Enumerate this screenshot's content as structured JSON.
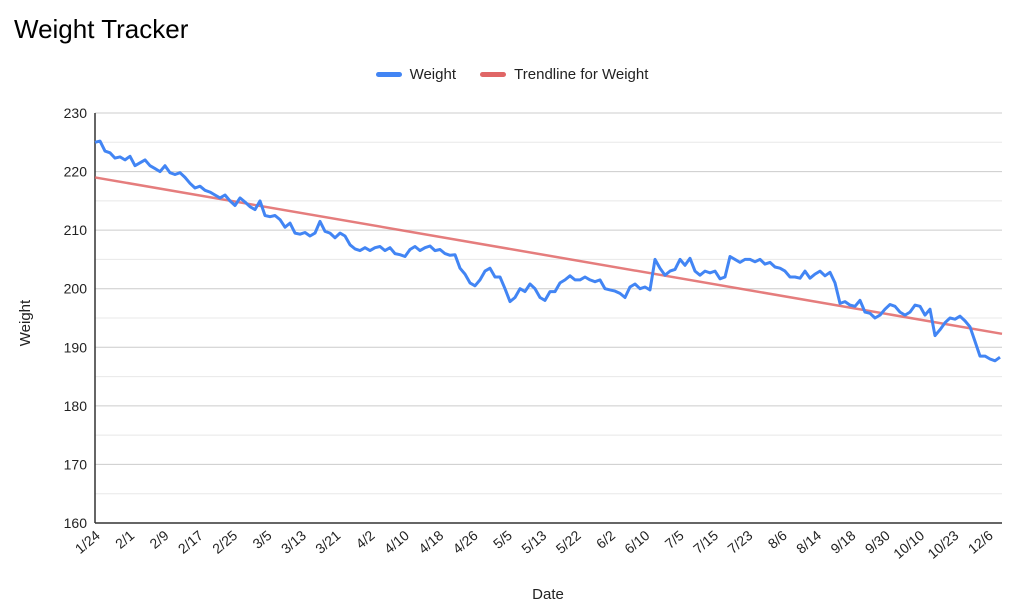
{
  "chart_data": {
    "type": "line",
    "title": "Weight Tracker",
    "xlabel": "Date",
    "ylabel": "Weight",
    "ylim": [
      160,
      230
    ],
    "yticks": [
      160,
      170,
      180,
      190,
      200,
      210,
      220,
      230
    ],
    "grid": true,
    "legend_position": "top",
    "x_tick_labels": [
      "1/24",
      "2/1",
      "2/9",
      "2/17",
      "2/25",
      "3/5",
      "3/13",
      "3/21",
      "4/2",
      "4/10",
      "4/18",
      "4/26",
      "5/5",
      "5/13",
      "5/22",
      "6/2",
      "6/10",
      "7/5",
      "7/15",
      "7/23",
      "8/6",
      "8/14",
      "9/18",
      "9/30",
      "10/10",
      "10/23",
      "12/6"
    ],
    "series": [
      {
        "name": "Weight",
        "color": "#4285f4",
        "values": [
          225,
          225.2,
          223.5,
          223.2,
          222.3,
          222.5,
          222,
          222.6,
          221,
          221.5,
          222,
          221,
          220.5,
          220,
          221,
          219.8,
          219.5,
          219.8,
          219,
          218,
          217.2,
          217.5,
          216.8,
          216.5,
          216,
          215.5,
          216,
          215,
          214.2,
          215.5,
          214.8,
          214,
          213.5,
          215,
          212.5,
          212.3,
          212.5,
          211.8,
          210.5,
          211.2,
          209.5,
          209.3,
          209.6,
          209,
          209.5,
          211.5,
          209.8,
          209.5,
          208.7,
          209.5,
          209,
          207.5,
          206.8,
          206.5,
          207,
          206.5,
          207,
          207.2,
          206.5,
          207,
          206,
          205.8,
          205.5,
          206.7,
          207.2,
          206.5,
          207,
          207.3,
          206.5,
          206.7,
          206,
          205.7,
          205.8,
          203.5,
          202.5,
          201,
          200.5,
          201.5,
          203,
          203.5,
          202,
          202,
          200,
          197.8,
          198.5,
          200,
          199.5,
          200.8,
          200,
          198.5,
          198,
          199.5,
          199.5,
          201,
          201.5,
          202.2,
          201.5,
          201.5,
          202,
          201.5,
          201.2,
          201.5,
          200,
          199.8,
          199.6,
          199.2,
          198.5,
          200.3,
          200.8,
          200,
          200.3,
          199.8,
          205,
          203.5,
          202.3,
          203,
          203.3,
          205,
          204,
          205.2,
          203,
          202.3,
          203,
          202.7,
          203,
          201.7,
          202,
          205.5,
          205,
          204.5,
          205,
          205,
          204.6,
          205,
          204.2,
          204.5,
          203.7,
          203.5,
          203,
          202,
          202,
          201.8,
          203,
          201.8,
          202.5,
          203,
          202.2,
          202.8,
          201,
          197.5,
          197.8,
          197.2,
          197,
          198,
          196,
          195.8,
          195,
          195.5,
          196.5,
          197.3,
          197,
          196,
          195.5,
          196,
          197.2,
          197,
          195.5,
          196.5,
          192,
          193,
          194.2,
          195,
          194.8,
          195.3,
          194.5,
          193.5,
          191,
          188.5,
          188.5,
          188,
          187.7,
          188.3
        ]
      },
      {
        "name": "Trendline for Weight",
        "color": "#e06666",
        "start": 219,
        "end": 192.3
      }
    ]
  }
}
